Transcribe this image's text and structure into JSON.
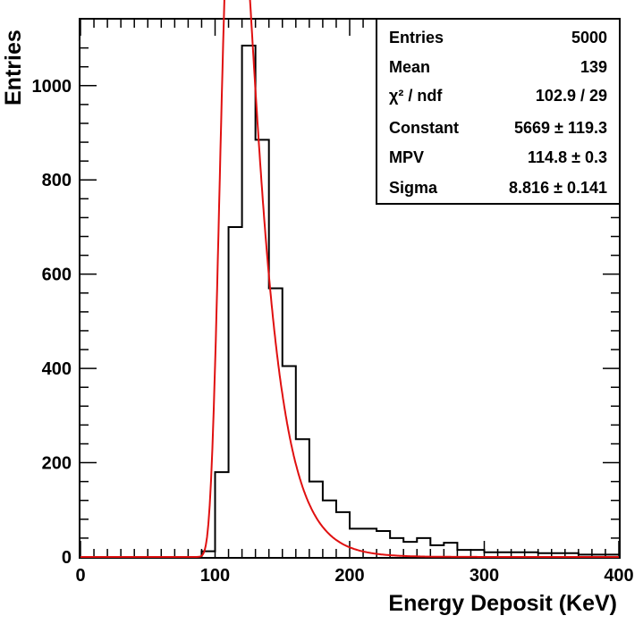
{
  "chart_data": {
    "type": "bar",
    "xlabel": "Energy Deposit (KeV)",
    "ylabel": "Entries",
    "xlim": [
      0,
      400
    ],
    "ylim": [
      0,
      1140
    ],
    "x_ticks": [
      "0",
      "100",
      "200",
      "300",
      "400"
    ],
    "y_ticks": [
      "0",
      "200",
      "400",
      "600",
      "800",
      "1000"
    ],
    "x_tick_values": [
      0,
      100,
      200,
      300,
      400
    ],
    "y_tick_values": [
      0,
      200,
      400,
      600,
      800,
      1000
    ],
    "bin_width": 10,
    "bin_edges_start": 0,
    "histogram_values": [
      0,
      0,
      0,
      0,
      0,
      0,
      0,
      0,
      0,
      12,
      180,
      700,
      1085,
      885,
      570,
      405,
      250,
      160,
      120,
      95,
      60,
      60,
      55,
      40,
      32,
      40,
      25,
      30,
      15,
      15,
      10,
      10,
      10,
      10,
      8,
      8,
      8,
      5,
      5,
      5
    ],
    "fit": {
      "function": "landau",
      "constant": 5669,
      "mpv": 114.8,
      "sigma": 8.816,
      "color": "#e01010",
      "x_range": [
        0,
        400
      ]
    },
    "stats": [
      {
        "label": "Entries",
        "value": "5000"
      },
      {
        "label": "Mean",
        "value": "139"
      },
      {
        "label": "χ² / ndf",
        "value": "102.9 / 29"
      },
      {
        "label": "Constant",
        "value": "5669 ± 119.3"
      },
      {
        "label": "MPV",
        "value": "114.8 ± 0.3"
      },
      {
        "label": "Sigma",
        "value": "8.816 ± 0.141"
      }
    ],
    "stats_placement": "top-right",
    "grid": false
  }
}
